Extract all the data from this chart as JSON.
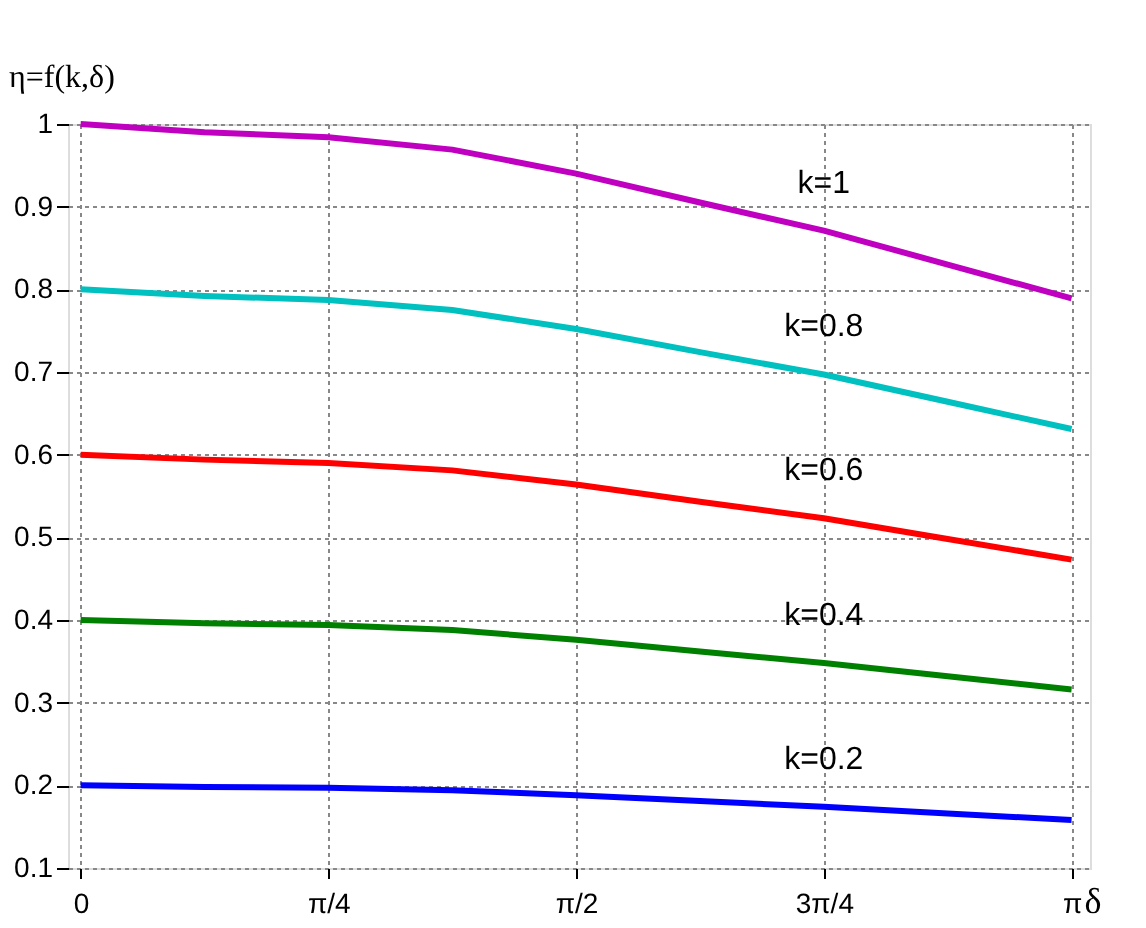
{
  "chart_data": {
    "type": "line",
    "xlabel": "δ",
    "ylabel": "η=f(k,δ)",
    "x": [
      0,
      0.3927,
      0.7854,
      1.1781,
      1.5708,
      1.9635,
      2.3562,
      2.7489,
      3.1416
    ],
    "series": [
      {
        "name": "k=1",
        "color": "#c000c0",
        "values": [
          1.0,
          0.99,
          0.984,
          0.969,
          0.94,
          0.905,
          0.871,
          0.83,
          0.789
        ]
      },
      {
        "name": "k=0.8",
        "color": "#00c0c0",
        "values": [
          0.8,
          0.792,
          0.787,
          0.775,
          0.752,
          0.724,
          0.697,
          0.664,
          0.631
        ]
      },
      {
        "name": "k=0.6",
        "color": "#ff0000",
        "values": [
          0.6,
          0.594,
          0.59,
          0.581,
          0.564,
          0.543,
          0.523,
          0.498,
          0.473
        ]
      },
      {
        "name": "k=0.4",
        "color": "#008000",
        "values": [
          0.4,
          0.396,
          0.394,
          0.388,
          0.376,
          0.362,
          0.348,
          0.332,
          0.316
        ]
      },
      {
        "name": "k=0.2",
        "color": "#0000ff",
        "values": [
          0.2,
          0.198,
          0.197,
          0.194,
          0.188,
          0.181,
          0.174,
          0.166,
          0.158
        ]
      }
    ],
    "xlim": [
      -0.04,
      3.2
    ],
    "xticks": [
      0,
      {
        "value": 0.7854,
        "label": "π/4"
      },
      {
        "value": 1.5708,
        "label": "π/2"
      },
      {
        "value": 2.3562,
        "label": "3π/4"
      },
      {
        "value": 3.1416,
        "label": "π"
      }
    ],
    "ylim": [
      0.1,
      1.0
    ],
    "yticks": [
      0.1,
      0.2,
      0.3,
      0.4,
      0.5,
      0.6,
      0.7,
      0.8,
      0.9,
      1
    ],
    "grid": true,
    "line_style": "solid",
    "marker": "none",
    "legend": false
  }
}
